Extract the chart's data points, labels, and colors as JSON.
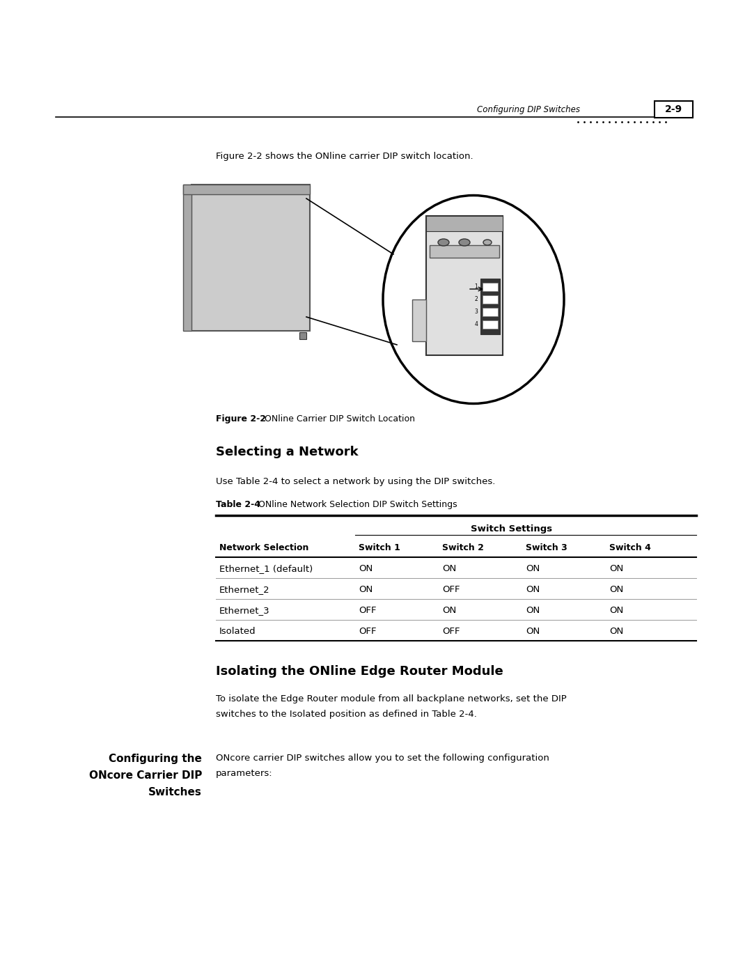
{
  "bg_color": "#ffffff",
  "header_text": "Configuring DIP Switches",
  "page_num": "2-9",
  "figure_caption_bold": "Figure 2-2",
  "figure_caption_rest": "   ONline Carrier DIP Switch Location",
  "intro_text": "Figure 2-2 shows the ONline carrier DIP switch location.",
  "section1_title": "Selecting a Network",
  "section1_body": "Use Table 2-4 to select a network by using the DIP switches.",
  "table_title_bold": "Table 2-4",
  "table_title_rest": "   ONline Network Selection DIP Switch Settings",
  "table_header_group": "Switch Settings",
  "table_col_headers": [
    "Network Selection",
    "Switch 1",
    "Switch 2",
    "Switch 3",
    "Switch 4"
  ],
  "table_rows": [
    [
      "Ethernet_1 (default)",
      "ON",
      "ON",
      "ON",
      "ON"
    ],
    [
      "Ethernet_2",
      "ON",
      "OFF",
      "ON",
      "ON"
    ],
    [
      "Ethernet_3",
      "OFF",
      "ON",
      "ON",
      "ON"
    ],
    [
      "Isolated",
      "OFF",
      "OFF",
      "ON",
      "ON"
    ]
  ],
  "section2_title": "Isolating the ONline Edge Router Module",
  "section2_line1": "To isolate the Edge Router module from all backplane networks, set the DIP",
  "section2_line2": "switches to the Isolated position as defined in Table 2-4.",
  "sidebar_title_line1": "Configuring the",
  "sidebar_title_line2": "ONcore Carrier DIP",
  "sidebar_title_line3": "Switches",
  "sidebar_body_line1": "ONcore carrier DIP switches allow you to set the following configuration",
  "sidebar_body_line2": "parameters:"
}
